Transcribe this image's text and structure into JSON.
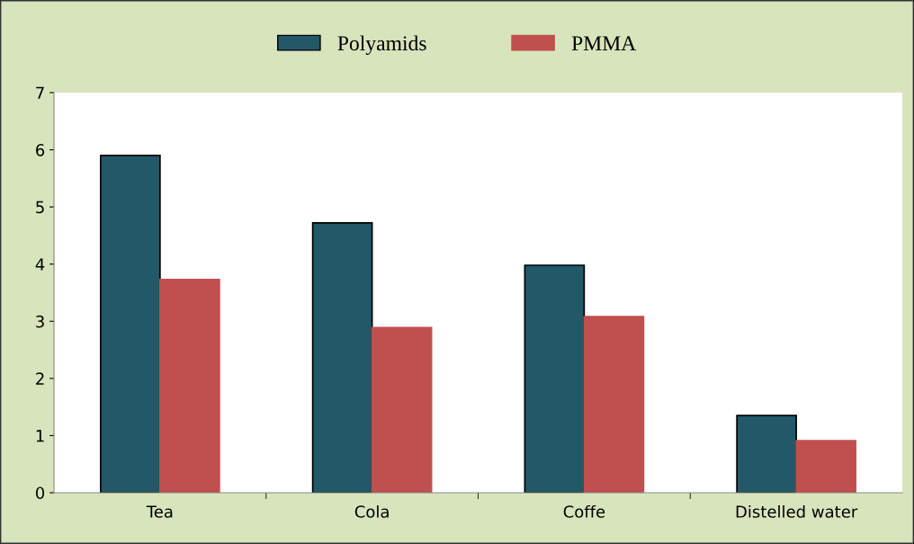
{
  "chart_data": {
    "type": "bar",
    "categories": [
      "Tea",
      "Cola",
      "Coffe",
      "Distelled water"
    ],
    "series": [
      {
        "name": "Polyamids",
        "color": "#215968",
        "values": [
          5.9,
          4.72,
          3.98,
          1.35
        ]
      },
      {
        "name": "PMMA",
        "color": "#c0504d",
        "values": [
          3.73,
          2.89,
          3.08,
          0.91
        ]
      }
    ],
    "ylim": [
      0,
      7
    ],
    "yticks": [
      0,
      1,
      2,
      3,
      4,
      5,
      6,
      7
    ],
    "grid": false,
    "legend": "top"
  }
}
